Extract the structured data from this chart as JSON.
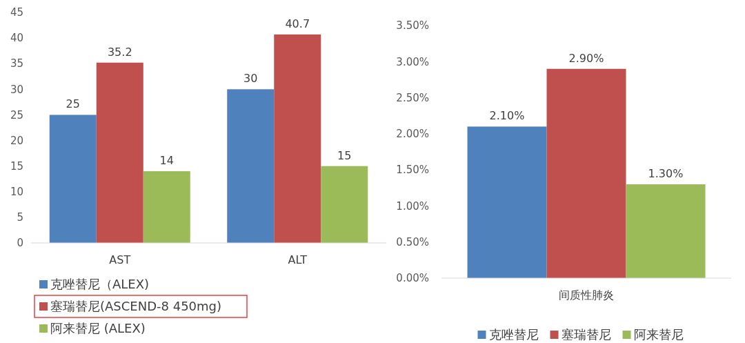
{
  "chart_data": [
    {
      "type": "bar",
      "categories": [
        "AST",
        "ALT"
      ],
      "series": [
        {
          "name": "克唑替尼（ALEX)",
          "color": "#4f81bd",
          "values": [
            25,
            30
          ]
        },
        {
          "name": "塞瑞替尼(ASCEND-8 450mg)",
          "color": "#c0504d",
          "values": [
            35.2,
            40.7
          ]
        },
        {
          "name": "阿来替尼 (ALEX)",
          "color": "#9bbb59",
          "values": [
            14,
            15
          ]
        }
      ],
      "ylim": [
        0,
        45
      ],
      "yticks": [
        0,
        5,
        10,
        15,
        20,
        25,
        30,
        35,
        40,
        45
      ],
      "data_labels": true,
      "legend": "bottom left",
      "grid": false
    },
    {
      "type": "bar",
      "categories": [
        "间质性肺炎"
      ],
      "series": [
        {
          "name": "克唑替尼",
          "color": "#4f81bd",
          "values": [
            2.1
          ],
          "value_labels": [
            "2.10%"
          ]
        },
        {
          "name": "塞瑞替尼",
          "color": "#c0504d",
          "values": [
            2.9
          ],
          "value_labels": [
            "2.90%"
          ]
        },
        {
          "name": "阿来替尼",
          "color": "#9bbb59",
          "values": [
            1.3
          ],
          "value_labels": [
            "1.30%"
          ]
        }
      ],
      "ylim": [
        0,
        3.5
      ],
      "yticks": [
        {
          "value": 0,
          "label": "0.00%"
        },
        {
          "value": 0.5,
          "label": "0.50%"
        },
        {
          "value": 1,
          "label": "1.00%"
        },
        {
          "value": 1.5,
          "label": "1.50%"
        },
        {
          "value": 2,
          "label": "2.00%"
        },
        {
          "value": 2.5,
          "label": "2.50%"
        },
        {
          "value": 3,
          "label": "3.00%"
        },
        {
          "value": 3.5,
          "label": "3.50%"
        }
      ],
      "legend": "bottom",
      "grid": false
    }
  ]
}
